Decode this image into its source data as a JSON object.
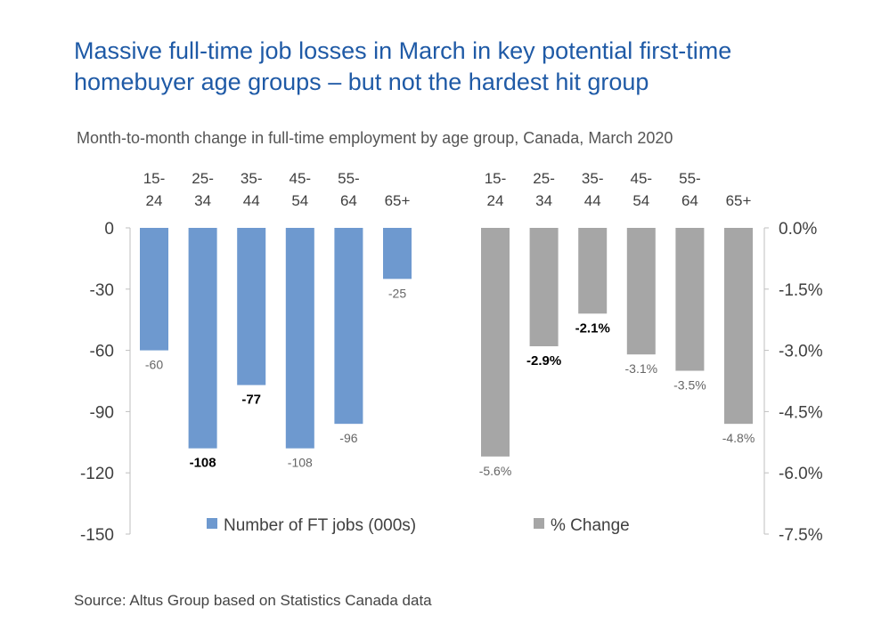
{
  "title_line1": "Massive full-time job losses in March in key potential first-time",
  "title_line2": "homebuyer age groups – but not the hardest hit group",
  "subtitle": "Month-to-month change in full-time employment by age group, Canada, March 2020",
  "source": "Source: Altus Group based on Statistics Canada data",
  "colors": {
    "title": "#1f5aa6",
    "jobs": "#6e99cf",
    "pct": "#a6a6a6",
    "axis": "#bfbfbf"
  },
  "chart_data": {
    "type": "bar",
    "title": "Massive full-time job losses in March in key potential first-time homebuyer age groups – but not the hardest hit group",
    "subtitle": "Month-to-month change in full-time employment by age group, Canada, March 2020",
    "categories": [
      [
        "15-",
        "24"
      ],
      [
        "25-",
        "34"
      ],
      [
        "35-",
        "44"
      ],
      [
        "45-",
        "54"
      ],
      [
        "55-",
        "64"
      ],
      [
        "65+"
      ]
    ],
    "left_axis": {
      "ticks": [
        0,
        -30,
        -60,
        -90,
        -120,
        -150
      ],
      "tick_labels": [
        "0",
        "-30",
        "-60",
        "-90",
        "-120",
        "-150"
      ],
      "ylim": [
        -150,
        0
      ]
    },
    "right_axis": {
      "ticks": [
        0,
        -1.5,
        -3.0,
        -4.5,
        -6.0,
        -7.5
      ],
      "tick_labels": [
        "0.0%",
        "-1.5%",
        "-3.0%",
        "-4.5%",
        "-6.0%",
        "-7.5%"
      ],
      "ylim": [
        -7.5,
        0
      ]
    },
    "legend_position": "bottom-center",
    "series": [
      {
        "name": "Number of FT jobs (000s)",
        "axis": "left",
        "values": [
          -60,
          -108,
          -77,
          -108,
          -96,
          -25
        ],
        "labels": [
          "-60",
          "-108",
          "-77",
          "-108",
          "-96",
          "-25"
        ],
        "bold": [
          false,
          true,
          true,
          false,
          false,
          false
        ]
      },
      {
        "name": "% Change",
        "axis": "right",
        "values": [
          -5.6,
          -2.9,
          -2.1,
          -3.1,
          -3.5,
          -4.8
        ],
        "labels": [
          "-5.6%",
          "-2.9%",
          "-2.1%",
          "-3.1%",
          "-3.5%",
          "-4.8%"
        ],
        "bold": [
          false,
          true,
          true,
          false,
          false,
          false
        ]
      }
    ]
  }
}
